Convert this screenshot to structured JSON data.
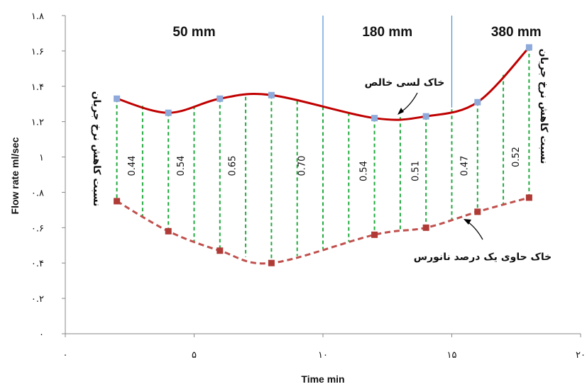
{
  "chart_data": {
    "type": "line",
    "xlabel": "Time min",
    "ylabel": "Flow rate ml/sec",
    "xlim": [
      0,
      20
    ],
    "ylim": [
      0,
      1.8
    ],
    "x_ticks": [
      {
        "value": 0,
        "label": "۰"
      },
      {
        "value": 5,
        "label": "۵"
      },
      {
        "value": 10,
        "label": "۱۰"
      },
      {
        "value": 15,
        "label": "۱۵"
      },
      {
        "value": 20,
        "label": "۲۰"
      }
    ],
    "y_ticks": [
      {
        "value": 0,
        "label": "۰"
      },
      {
        "value": 0.2,
        "label": "۰.۲"
      },
      {
        "value": 0.4,
        "label": "۰.۴"
      },
      {
        "value": 0.6,
        "label": "۰.۶"
      },
      {
        "value": 0.8,
        "label": "۰.۸"
      },
      {
        "value": 1.0,
        "label": "۱"
      },
      {
        "value": 1.2,
        "label": "۱.۲"
      },
      {
        "value": 1.4,
        "label": "۱.۴"
      },
      {
        "value": 1.6,
        "label": "۱.۶"
      },
      {
        "value": 1.8,
        "label": "۱.۸"
      }
    ],
    "series": [
      {
        "name": "خاک لسی خالص",
        "color": "#c00000",
        "marker_color": "#8eaadb",
        "x": [
          2,
          4,
          6,
          8,
          12,
          14,
          16,
          18
        ],
        "y": [
          1.33,
          1.25,
          1.33,
          1.35,
          1.22,
          1.23,
          1.31,
          1.62
        ]
      },
      {
        "name": "خاک حاوی یک درصد نانورس",
        "color": "#c0504d",
        "marker_color": "#b03a36",
        "x": [
          2,
          4,
          6,
          8,
          12,
          14,
          16,
          18
        ],
        "y": [
          0.75,
          0.58,
          0.47,
          0.4,
          0.56,
          0.6,
          0.69,
          0.77
        ]
      }
    ],
    "dividers_x": [
      10,
      15
    ],
    "regions": [
      {
        "label": "50 mm",
        "x": 5
      },
      {
        "label": "180 mm",
        "x": 12.5
      },
      {
        "label": "380 mm",
        "x": 17.5
      }
    ],
    "ratio_lines_x": [
      2,
      3,
      4,
      5,
      6,
      7,
      8,
      9,
      10,
      11,
      12,
      13,
      14,
      15,
      16,
      17,
      18
    ],
    "ratio_labels": [
      {
        "value": "0.44",
        "x": 2.7,
        "y": 0.95
      },
      {
        "value": "0.54",
        "x": 4.6,
        "y": 0.95
      },
      {
        "value": "0.65",
        "x": 6.6,
        "y": 0.95
      },
      {
        "value": "0.70",
        "x": 9.3,
        "y": 0.95
      },
      {
        "value": "0.54",
        "x": 11.7,
        "y": 0.92
      },
      {
        "value": "0.51",
        "x": 13.7,
        "y": 0.92
      },
      {
        "value": "0.47",
        "x": 15.6,
        "y": 0.95
      },
      {
        "value": "0.52",
        "x": 17.6,
        "y": 1.0
      }
    ],
    "side_label": "نسبت کاهش نرخ جریان"
  }
}
